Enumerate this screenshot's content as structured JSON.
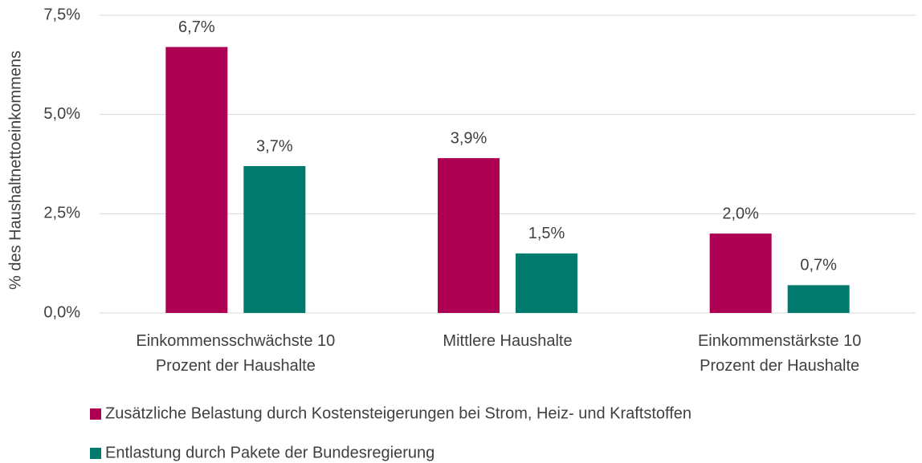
{
  "chart_data": {
    "type": "bar",
    "y_label": "% des Haushaltnettoeinkommens",
    "categories": [
      "Einkommensschwächste 10\nProzent der Haushalte",
      "Mittlere Haushalte",
      "Einkommenstärkste 10\nProzent der Haushalte"
    ],
    "series": [
      {
        "name": "Zusätzliche Belastung durch Kostensteigerungen bei Strom, Heiz- und Kraftstoffen",
        "color": "#ad0052",
        "values": [
          6.7,
          3.9,
          2.0
        ],
        "value_labels": [
          "6,7%",
          "3,9%",
          "2,0%"
        ]
      },
      {
        "name": "Entlastung durch Pakete der Bundesregierung",
        "color": "#007a6c",
        "values": [
          3.7,
          1.5,
          0.7
        ],
        "value_labels": [
          "3,7%",
          "1,5%",
          "0,7%"
        ]
      }
    ],
    "ylim": [
      0,
      7.5
    ],
    "yticks": [
      {
        "value": 0,
        "label": "0,0%"
      },
      {
        "value": 2.5,
        "label": "2,5%"
      },
      {
        "value": 5,
        "label": "5,0%"
      },
      {
        "value": 7.5,
        "label": "7,5%"
      }
    ],
    "grid": true
  }
}
